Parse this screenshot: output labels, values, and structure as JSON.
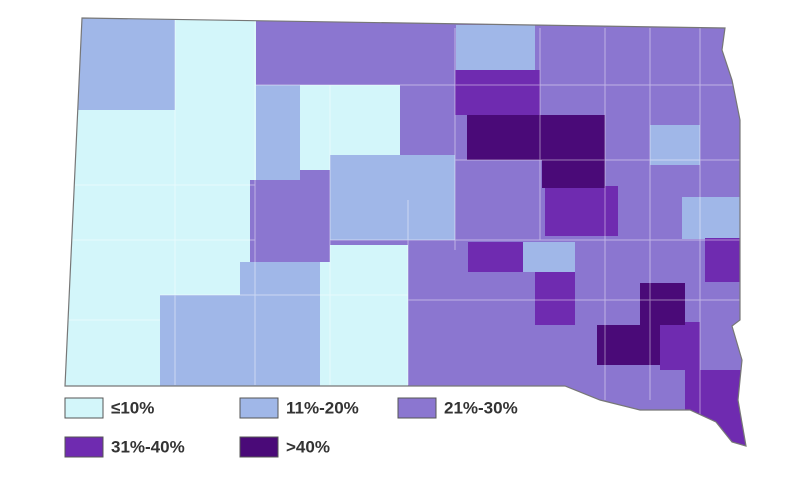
{
  "legend": {
    "items": [
      {
        "label": "≤10%",
        "color": "#d3f6fa"
      },
      {
        "label": "11%-20%",
        "color": "#a0b7e8"
      },
      {
        "label": "21%-30%",
        "color": "#8b76d0"
      },
      {
        "label": "31%-40%",
        "color": "#6f2bb0"
      },
      {
        "label": ">40%",
        "color": "#4a0a78"
      }
    ]
  }
}
